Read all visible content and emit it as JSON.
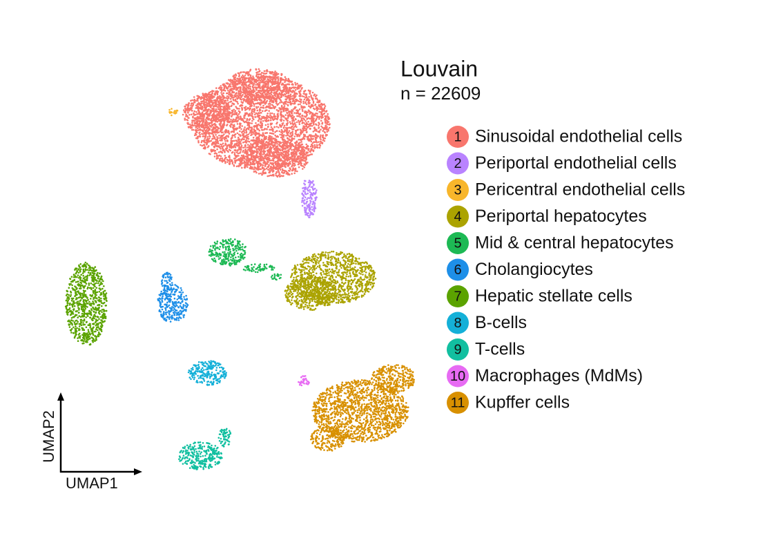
{
  "chart_data": {
    "type": "umap",
    "title": "Louvain",
    "subtitle": "n = 22609",
    "x_label": "UMAP1",
    "y_label": "UMAP2",
    "clusters": [
      {
        "label": "1",
        "name": "Sinusoidal endothelial cells",
        "color": "#F8766D"
      },
      {
        "label": "2",
        "name": "Periportal endothelial cells",
        "color": "#B983FF"
      },
      {
        "label": "3",
        "name": "Pericentral endothelial cells",
        "color": "#F8B62B"
      },
      {
        "label": "4",
        "name": "Periportal hepatocytes",
        "color": "#ABA300"
      },
      {
        "label": "5",
        "name": "Mid & central hepatocytes",
        "color": "#1DB954"
      },
      {
        "label": "6",
        "name": "Cholangiocytes",
        "color": "#1E8FE8"
      },
      {
        "label": "7",
        "name": "Hepatic stellate cells",
        "color": "#5BA300"
      },
      {
        "label": "8",
        "name": "B-cells",
        "color": "#14B0D8"
      },
      {
        "label": "9",
        "name": "T-cells",
        "color": "#12BFA0"
      },
      {
        "label": "10",
        "name": "Macrophages (MdMs)",
        "color": "#E76BF3"
      },
      {
        "label": "11",
        "name": "Kupffer cells",
        "color": "#D89000"
      }
    ]
  }
}
